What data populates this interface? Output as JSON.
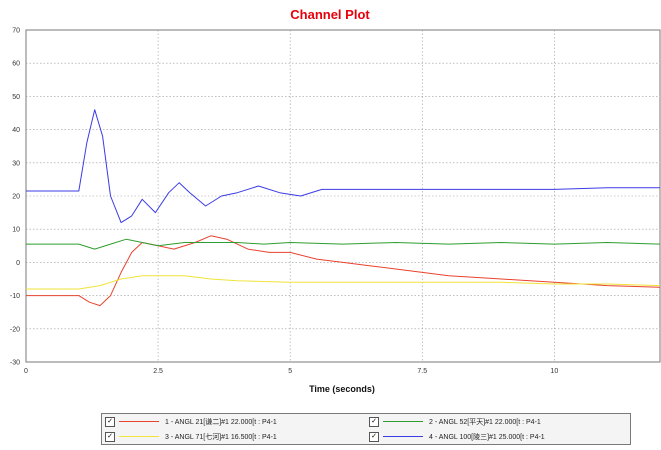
{
  "chart_data": {
    "type": "line",
    "title": "Channel Plot",
    "xlabel": "Time (seconds)",
    "ylabel": "",
    "xlim": [
      0,
      12
    ],
    "ylim": [
      -30,
      70
    ],
    "x_ticks": [
      "0",
      "2.5",
      "5",
      "7.5",
      "10"
    ],
    "y_ticks": [
      "70",
      "60",
      "50",
      "40",
      "30",
      "20",
      "10",
      "0",
      "-10",
      "-20",
      "-30"
    ],
    "grid": true,
    "series": [
      {
        "name": "1 - ANGL",
        "legend_text": "1 - ANGL  21[谦二]#1       22.000[t : P4-1",
        "color": "#e8432f",
        "x": [
          0,
          1.0,
          1.2,
          1.4,
          1.6,
          1.8,
          2.0,
          2.2,
          2.5,
          2.8,
          3.2,
          3.5,
          3.8,
          4.2,
          4.6,
          5.0,
          5.5,
          6.0,
          6.5,
          7.0,
          7.5,
          8.0,
          9.0,
          10.0,
          11.0,
          12.0
        ],
        "y": [
          -10,
          -10,
          -12,
          -13,
          -10,
          -3,
          3,
          6,
          5,
          4,
          6,
          8,
          7,
          4,
          3,
          3,
          1,
          0,
          -1,
          -2,
          -3,
          -4,
          -5,
          -6,
          -7,
          -7.5
        ]
      },
      {
        "name": "2 - ANGL",
        "legend_text": "2 - ANGL  52[平天]#1       22.000[t : P4-1",
        "color": "#2e9e2e",
        "x": [
          0,
          1.0,
          1.3,
          1.6,
          1.9,
          2.2,
          2.5,
          3.0,
          3.5,
          4.0,
          4.5,
          5.0,
          6.0,
          7.0,
          8.0,
          9.0,
          10.0,
          11.0,
          12.0
        ],
        "y": [
          5.5,
          5.5,
          4,
          5.5,
          7,
          6,
          5,
          6,
          6,
          6,
          5.5,
          6,
          5.5,
          6,
          5.5,
          6,
          5.5,
          6,
          5.5
        ]
      },
      {
        "name": "3 - ANGL",
        "legend_text": "3 - ANGL  71[七河]#1       16.500[t : P4-1",
        "color": "#f0e33a",
        "x": [
          0,
          1.0,
          1.4,
          1.8,
          2.2,
          2.6,
          3.0,
          3.5,
          4.0,
          5.0,
          6.0,
          7.0,
          8.0,
          9.0,
          10.0,
          11.0,
          12.0
        ],
        "y": [
          -8,
          -8,
          -7,
          -5,
          -4,
          -4,
          -4,
          -5,
          -5.5,
          -6,
          -6,
          -6,
          -6,
          -6,
          -6.5,
          -6.5,
          -7
        ]
      },
      {
        "name": "4 - ANGL",
        "legend_text": "4 - ANGL  100[陵三]#1       25.000[t : P4-1",
        "color": "#3b3be6",
        "x": [
          0,
          1.0,
          1.15,
          1.3,
          1.45,
          1.6,
          1.8,
          2.0,
          2.2,
          2.45,
          2.7,
          2.9,
          3.1,
          3.4,
          3.7,
          4.0,
          4.4,
          4.8,
          5.2,
          5.6,
          6.0,
          7.0,
          8.0,
          9.0,
          10.0,
          11.0,
          12.0
        ],
        "y": [
          21.5,
          21.5,
          36,
          46,
          38,
          20,
          12,
          14,
          19,
          15,
          21,
          24,
          21,
          17,
          20,
          21,
          23,
          21,
          20,
          22,
          22,
          22,
          22,
          22,
          22,
          22.5,
          22.5
        ]
      }
    ]
  }
}
